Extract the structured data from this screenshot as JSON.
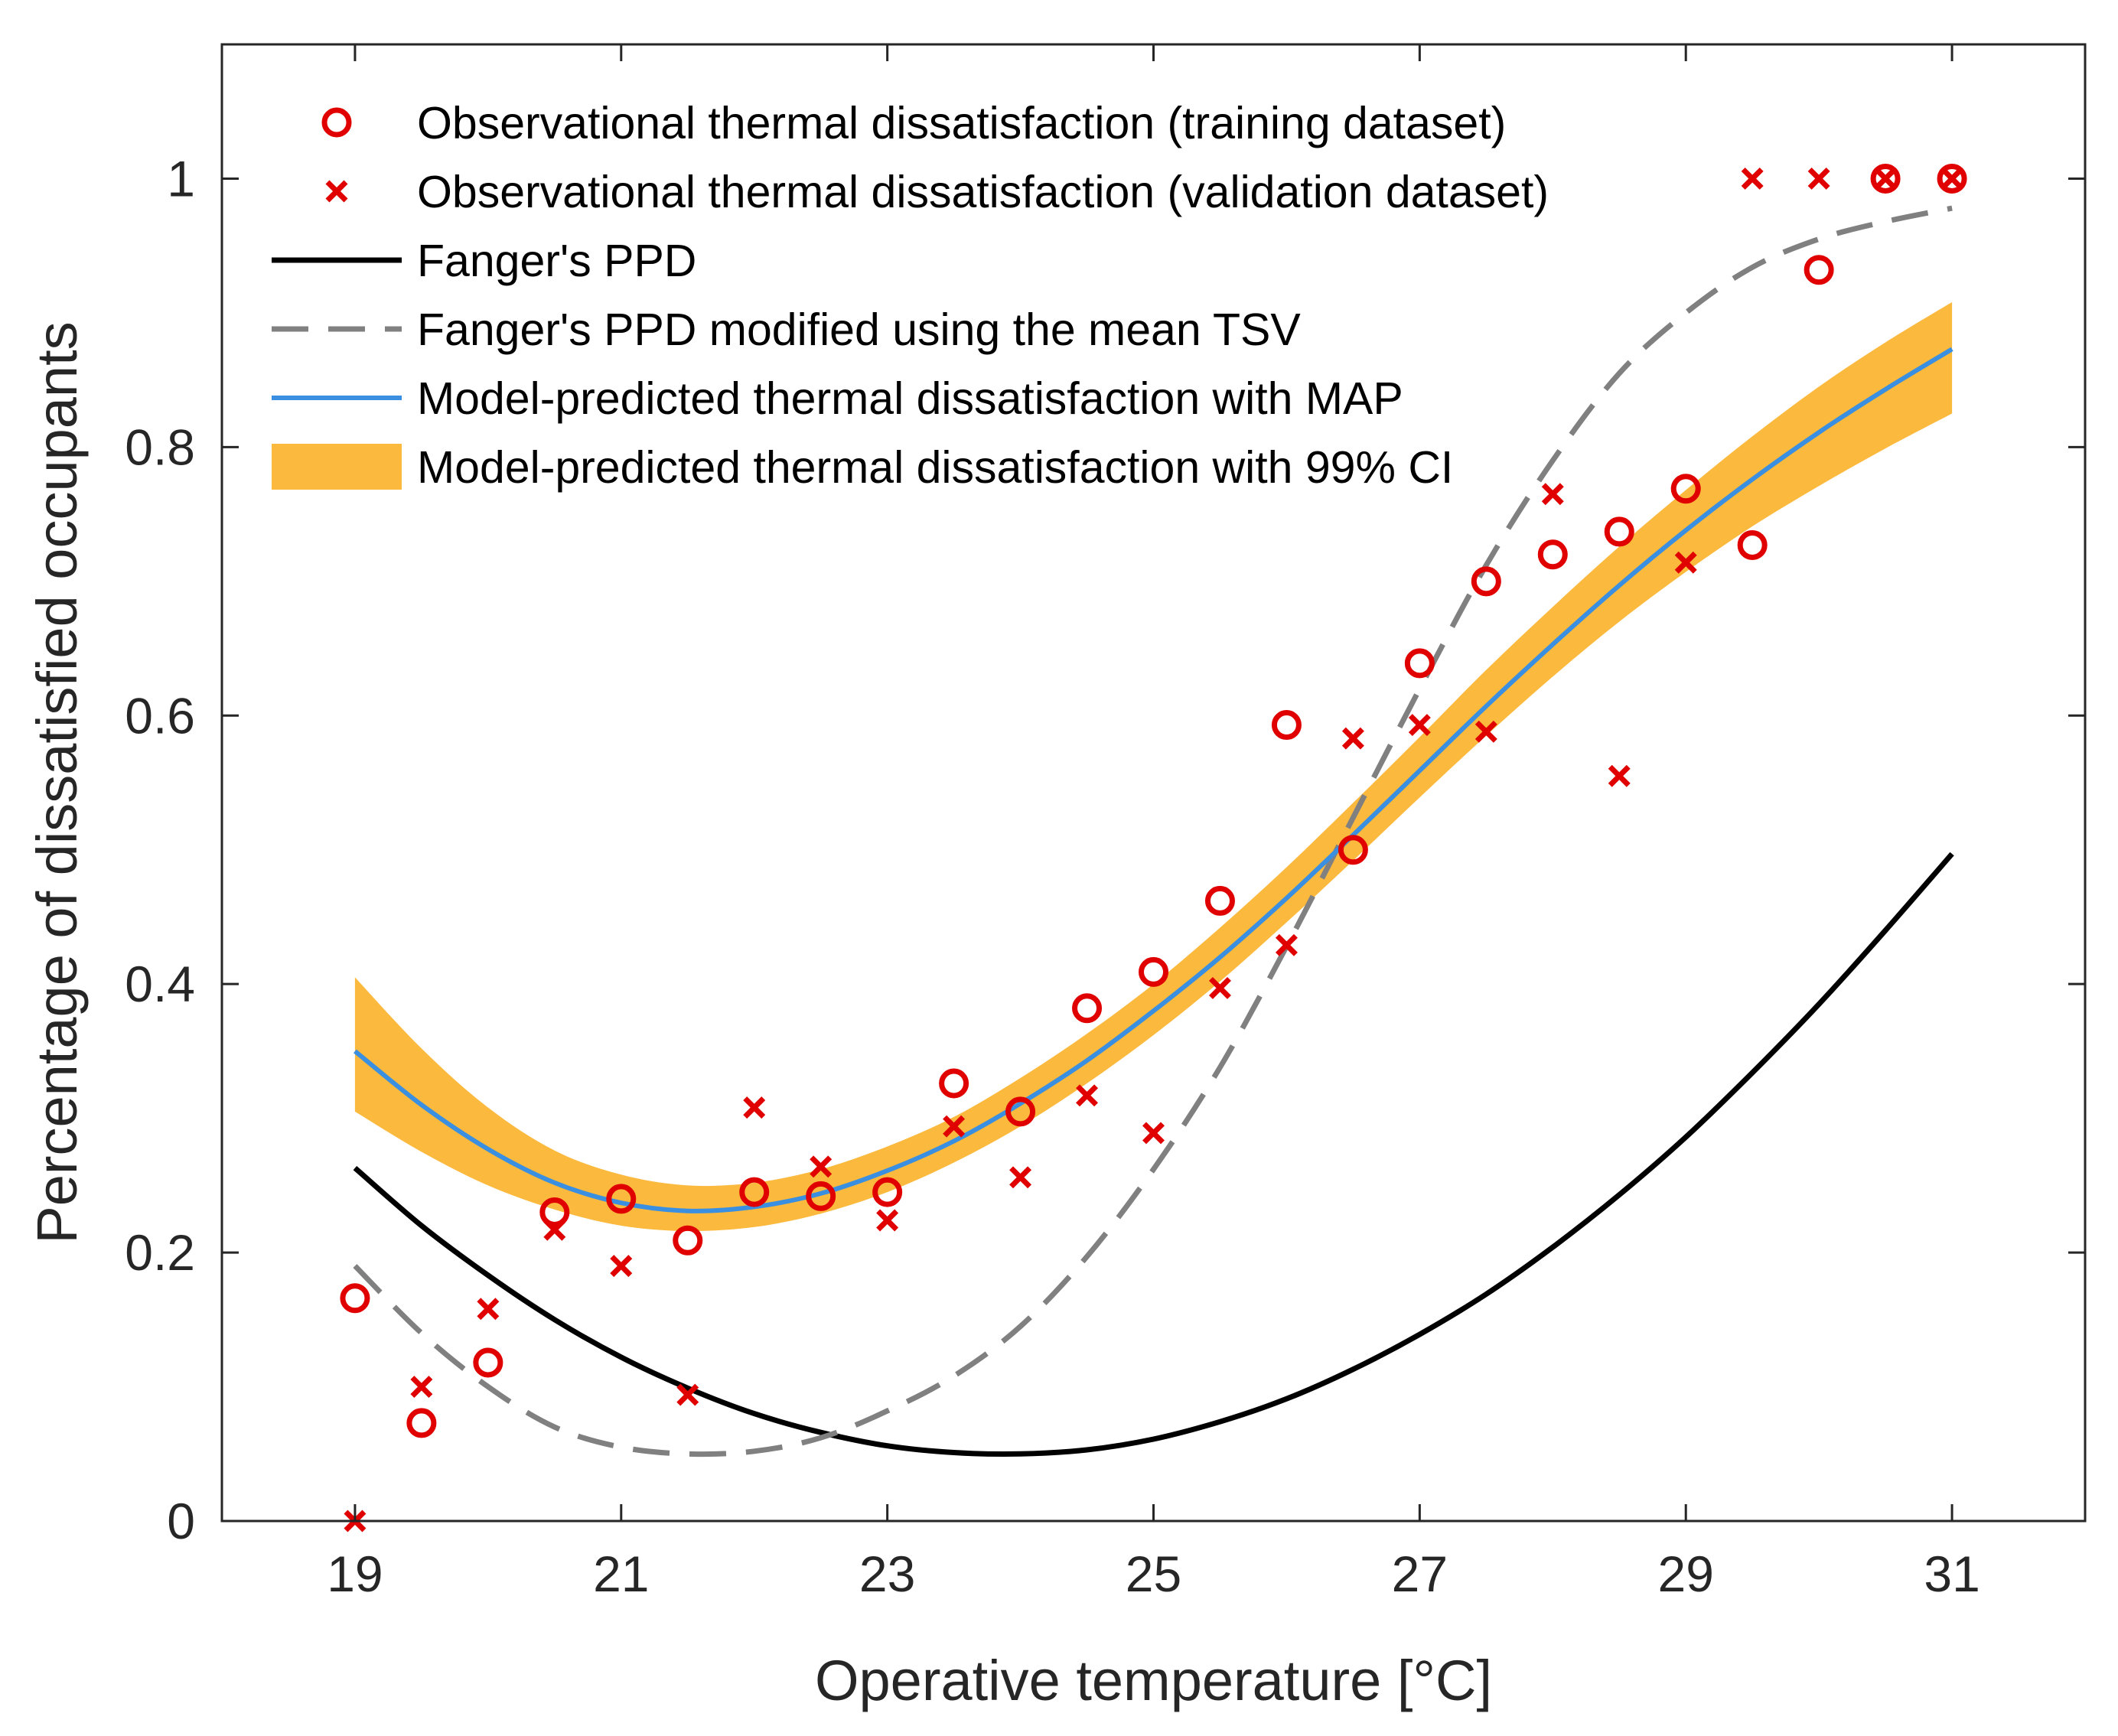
{
  "chart_data": {
    "type": "scatter",
    "xlabel": "Operative temperature [°C]",
    "ylabel": "Percentage of dissatisfied occupants",
    "xlim": [
      18,
      32
    ],
    "ylim": [
      0,
      1.1
    ],
    "xticks": [
      19,
      21,
      23,
      25,
      27,
      29,
      31
    ],
    "yticks": [
      0,
      0.2,
      0.4,
      0.6,
      0.8,
      1
    ],
    "ytick_labels": [
      "0",
      "0.2",
      "0.4",
      "0.6",
      "0.8",
      "1"
    ],
    "xtick_labels": [
      "19",
      "21",
      "23",
      "25",
      "27",
      "29",
      "31"
    ],
    "grid": false,
    "legend_position": "top-left",
    "colors": {
      "observation": "#e00000",
      "ppd": "#000000",
      "ppd_modified": "#808080",
      "map": "#3a8fe0",
      "ci": "#fbb93e",
      "axis": "#262626"
    },
    "series": [
      {
        "name": "Observational thermal dissatisfaction (training dataset)",
        "kind": "scatter-circle",
        "x": [
          19,
          19.5,
          20,
          20.5,
          21,
          21.5,
          22,
          22.5,
          23,
          23.5,
          24,
          24.5,
          25,
          25.5,
          26,
          26.5,
          27,
          27.5,
          28,
          28.5,
          29,
          29.5,
          30,
          30.5,
          31
        ],
        "y": [
          0.166,
          0.073,
          0.118,
          0.23,
          0.24,
          0.209,
          0.245,
          0.242,
          0.245,
          0.326,
          0.305,
          0.382,
          0.409,
          0.462,
          0.593,
          0.5,
          0.639,
          0.7,
          0.72,
          0.737,
          0.769,
          0.727,
          0.932,
          1.0,
          1.0
        ]
      },
      {
        "name": "Observational thermal dissatisfaction (validation dataset)",
        "kind": "scatter-cross",
        "x": [
          19,
          19.5,
          20,
          20.5,
          21,
          21.5,
          22,
          22.5,
          23,
          23.5,
          24,
          24.5,
          25,
          25.5,
          26,
          26.5,
          27,
          27.5,
          28,
          28.5,
          29,
          29.5,
          30,
          30.5,
          31
        ],
        "y": [
          0.0,
          0.1,
          0.158,
          0.217,
          0.19,
          0.094,
          0.308,
          0.264,
          0.224,
          0.294,
          0.256,
          0.317,
          0.289,
          0.397,
          0.429,
          0.583,
          0.593,
          0.588,
          0.765,
          0.555,
          0.714,
          1.0,
          1.0,
          1.0,
          1.0
        ]
      },
      {
        "name": "Fanger's PPD",
        "kind": "line-solid",
        "x": [
          19,
          19.5,
          20,
          20.5,
          21,
          21.5,
          22,
          22.5,
          23,
          23.5,
          24,
          24.5,
          25,
          25.5,
          26,
          26.5,
          27,
          27.5,
          28,
          28.5,
          29,
          29.5,
          30,
          30.5,
          31
        ],
        "y": [
          0.263,
          0.22,
          0.183,
          0.15,
          0.122,
          0.099,
          0.08,
          0.066,
          0.056,
          0.051,
          0.05,
          0.053,
          0.061,
          0.074,
          0.091,
          0.113,
          0.139,
          0.169,
          0.204,
          0.243,
          0.286,
          0.334,
          0.385,
          0.44,
          0.497
        ]
      },
      {
        "name": "Fanger's PPD modified using the mean TSV",
        "kind": "line-dashed",
        "x": [
          19,
          19.5,
          20,
          20.5,
          21,
          21.5,
          22,
          22.5,
          23,
          23.5,
          24,
          24.5,
          25,
          25.5,
          26,
          26.5,
          27,
          27.5,
          28,
          28.5,
          29,
          29.5,
          30,
          30.5,
          31
        ],
        "y": [
          0.19,
          0.14,
          0.1,
          0.07,
          0.055,
          0.05,
          0.052,
          0.062,
          0.082,
          0.108,
          0.145,
          0.197,
          0.262,
          0.338,
          0.428,
          0.524,
          0.62,
          0.712,
          0.79,
          0.855,
          0.9,
          0.934,
          0.955,
          0.968,
          0.978
        ]
      },
      {
        "name": "Model-predicted thermal dissatisfaction with MAP",
        "kind": "line-solid",
        "x": [
          19,
          19.5,
          20,
          20.5,
          21,
          21.5,
          22,
          22.5,
          23,
          23.5,
          24,
          24.5,
          25,
          25.5,
          26,
          26.5,
          27,
          27.5,
          28,
          28.5,
          29,
          29.5,
          30,
          30.5,
          31
        ],
        "y": [
          0.35,
          0.31,
          0.277,
          0.252,
          0.237,
          0.231,
          0.234,
          0.244,
          0.261,
          0.283,
          0.311,
          0.343,
          0.38,
          0.42,
          0.464,
          0.511,
          0.559,
          0.607,
          0.653,
          0.697,
          0.738,
          0.776,
          0.811,
          0.843,
          0.873
        ]
      },
      {
        "name": "Model-predicted thermal dissatisfaction with 99% CI",
        "kind": "band",
        "x": [
          19,
          19.5,
          20,
          20.5,
          21,
          21.5,
          22,
          22.5,
          23,
          23.5,
          24,
          24.5,
          25,
          25.5,
          26,
          26.5,
          27,
          27.5,
          28,
          28.5,
          29,
          29.5,
          30,
          30.5,
          31
        ],
        "lower": [
          0.305,
          0.275,
          0.25,
          0.232,
          0.22,
          0.216,
          0.219,
          0.229,
          0.245,
          0.267,
          0.294,
          0.326,
          0.362,
          0.402,
          0.446,
          0.492,
          0.539,
          0.585,
          0.629,
          0.67,
          0.707,
          0.741,
          0.771,
          0.799,
          0.825
        ],
        "upper": [
          0.405,
          0.352,
          0.308,
          0.276,
          0.258,
          0.25,
          0.252,
          0.262,
          0.279,
          0.301,
          0.33,
          0.363,
          0.4,
          0.442,
          0.487,
          0.535,
          0.584,
          0.634,
          0.681,
          0.726,
          0.768,
          0.808,
          0.845,
          0.878,
          0.908
        ]
      }
    ]
  }
}
